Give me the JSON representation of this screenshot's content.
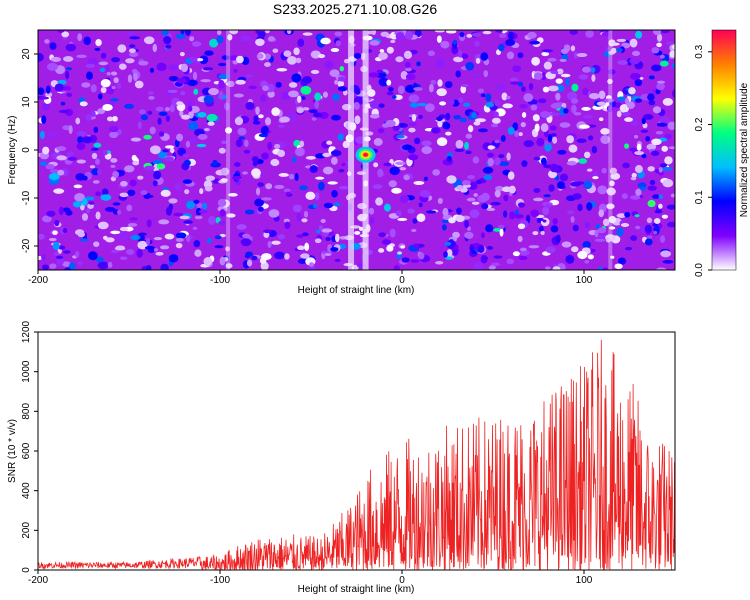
{
  "title": "S233.2025.271.10.08.G26",
  "chart_data": [
    {
      "type": "heatmap",
      "xlabel": "Height of straight line (km)",
      "ylabel": "Frequency (Hz)",
      "xlim": [
        -200,
        150
      ],
      "ylim": [
        -25,
        25
      ],
      "xticks": [
        "-200",
        "-100",
        "0",
        "100"
      ],
      "yticks": [
        "-20",
        "-10",
        "0",
        "10",
        "20"
      ],
      "colorbar": {
        "label": "Normalized spectral amplitude",
        "range": [
          0.0,
          0.33
        ],
        "ticks": [
          "0.0",
          "0.1",
          "0.2",
          "0.3"
        ],
        "colors": [
          "#ffffff",
          "#7f00ff",
          "#0000ff",
          "#00bfff",
          "#00ff80",
          "#ffff00",
          "#ff8000",
          "#ff0055"
        ]
      },
      "peak": {
        "x": -20,
        "y": -1,
        "value": 0.33
      }
    },
    {
      "type": "line",
      "xlabel": "Height of straight line (km)",
      "ylabel": "SNR (10 * v/v)",
      "xlim": [
        -200,
        150
      ],
      "ylim": [
        0,
        1200
      ],
      "xticks": [
        "-200",
        "-100",
        "0",
        "100"
      ],
      "yticks": [
        "0",
        "200",
        "400",
        "600",
        "800",
        "1000",
        "1200"
      ],
      "color": "#ee2222",
      "envelope": {
        "x": [
          -200,
          -150,
          -120,
          -100,
          -90,
          -80,
          -60,
          -45,
          -30,
          -15,
          0,
          15,
          30,
          45,
          60,
          75,
          90,
          100,
          110,
          120,
          128,
          135,
          142,
          150
        ],
        "y": [
          40,
          40,
          60,
          80,
          130,
          170,
          180,
          170,
          320,
          560,
          660,
          700,
          760,
          780,
          820,
          860,
          1000,
          1050,
          1180,
          1050,
          940,
          720,
          680,
          620
        ]
      }
    }
  ]
}
